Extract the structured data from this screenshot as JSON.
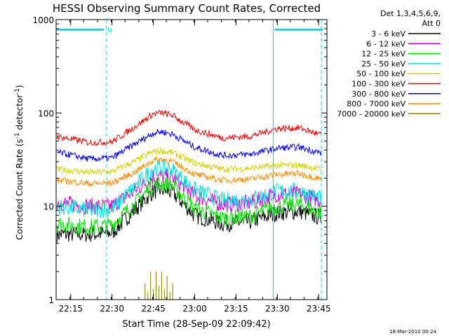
{
  "chart_data": {
    "type": "line",
    "title": "HESSI Observing Summary Count Rates, Corrected",
    "xlabel": "Start Time (28-Sep-09 22:09:42)",
    "ylabel_main": "Corrected Count Rate (s",
    "ylabel_sup1": "-1",
    "ylabel_mid": " detector",
    "ylabel_sup2": "-1",
    "ylabel_end": ")",
    "y_scale": "log",
    "ylim": [
      1,
      1000
    ],
    "xlim": [
      "22:09:42",
      "23:48:00"
    ],
    "x_ticks": [
      "22:15",
      "22:30",
      "22:45",
      "23:00",
      "23:15",
      "23:30",
      "23:45"
    ],
    "y_ticks": [
      "1",
      "10",
      "100",
      "1000"
    ],
    "legend_header": [
      "Det 1,3,4,5,6,9,",
      "Att 0"
    ],
    "legend_position": "right",
    "footer_date": "18-Mar-2010 00:24",
    "markers": {
      "n_label": "N",
      "bars": [
        {
          "from": "22:09:42",
          "to": "22:27:00",
          "value": 780
        },
        {
          "from": "23:29:00",
          "to": "23:46:30",
          "value": 780
        }
      ],
      "vertical_lines": [
        {
          "time": "22:09:42",
          "style": "solid"
        },
        {
          "time": "22:28:00",
          "style": "dashed"
        },
        {
          "time": "23:28:30",
          "style": "solid"
        },
        {
          "time": "23:46:00",
          "style": "dashed"
        }
      ]
    },
    "series": [
      {
        "name": "3 - 6 keV",
        "color": "#000000",
        "t": [
          "22:10",
          "22:22",
          "22:30",
          "22:38",
          "22:45",
          "22:48",
          "22:52",
          "23:00",
          "23:10",
          "23:20",
          "23:30",
          "23:38",
          "23:46"
        ],
        "values": [
          5,
          5,
          5.2,
          9,
          14.5,
          15,
          14,
          8,
          6.5,
          6.8,
          8.5,
          8.8,
          7.5
        ]
      },
      {
        "name": "6 - 12 keV",
        "color": "#d200d2",
        "t": [
          "22:10",
          "22:22",
          "22:30",
          "22:38",
          "22:45",
          "22:48",
          "22:52",
          "23:00",
          "23:10",
          "23:20",
          "23:30",
          "23:38",
          "23:46"
        ],
        "values": [
          11,
          10,
          10,
          14.5,
          20.5,
          21,
          20,
          13,
          10.5,
          10.8,
          13.5,
          13.5,
          11.5
        ]
      },
      {
        "name": "12 - 25 keV",
        "color": "#00dc00",
        "t": [
          "22:10",
          "22:22",
          "22:30",
          "22:38",
          "22:45",
          "22:48",
          "22:52",
          "23:00",
          "23:10",
          "23:20",
          "23:30",
          "23:38",
          "23:46"
        ],
        "values": [
          6.5,
          6,
          6.3,
          10.5,
          17,
          17.5,
          16.5,
          9.5,
          7.5,
          7.8,
          10,
          10.5,
          8.5
        ]
      },
      {
        "name": "25 - 50 keV",
        "color": "#00dcdc",
        "t": [
          "22:10",
          "22:22",
          "22:30",
          "22:38",
          "22:45",
          "22:48",
          "22:52",
          "23:00",
          "23:10",
          "23:20",
          "23:30",
          "23:38",
          "23:46"
        ],
        "values": [
          10,
          9,
          9.3,
          16,
          25.5,
          26,
          24.5,
          15,
          11.5,
          11.8,
          14.5,
          14.5,
          12
        ]
      },
      {
        "name": "50 - 100 keV",
        "color": "#d2d200",
        "t": [
          "22:10",
          "22:22",
          "22:30",
          "22:38",
          "22:45",
          "22:48",
          "22:52",
          "23:00",
          "23:10",
          "23:20",
          "23:30",
          "23:38",
          "23:46"
        ],
        "values": [
          25,
          23,
          23.5,
          30,
          38.5,
          39,
          37.5,
          29,
          25,
          25.5,
          27.5,
          27.5,
          25
        ]
      },
      {
        "name": "100 - 300 keV",
        "color": "#e60000",
        "t": [
          "22:10",
          "22:22",
          "22:30",
          "22:38",
          "22:45",
          "22:48",
          "22:52",
          "23:00",
          "23:10",
          "23:20",
          "23:30",
          "23:38",
          "23:46"
        ],
        "values": [
          56,
          48,
          49,
          70,
          98,
          100,
          94,
          66,
          54,
          56,
          68,
          69,
          58
        ]
      },
      {
        "name": "300 - 800 keV",
        "color": "#0000dc",
        "t": [
          "22:10",
          "22:22",
          "22:30",
          "22:38",
          "22:45",
          "22:48",
          "22:52",
          "23:00",
          "23:10",
          "23:20",
          "23:30",
          "23:38",
          "23:46"
        ],
        "values": [
          38,
          32,
          33,
          46,
          61,
          63,
          59,
          43,
          35,
          36,
          42,
          43,
          37
        ]
      },
      {
        "name": "800 - 7000 keV",
        "color": "#ff8c00",
        "t": [
          "22:10",
          "22:22",
          "22:30",
          "22:38",
          "22:45",
          "22:48",
          "22:52",
          "23:00",
          "23:10",
          "23:20",
          "23:30",
          "23:38",
          "23:46"
        ],
        "values": [
          19,
          17.5,
          17.8,
          23,
          31,
          32,
          30,
          22,
          19,
          19.5,
          22,
          22.5,
          19.5
        ]
      },
      {
        "name": "7000 - 20000 keV",
        "color": "#8c7800",
        "t": [
          "22:41",
          "22:42",
          "22:43",
          "22:44",
          "22:45",
          "22:46",
          "22:47",
          "22:48",
          "22:49",
          "22:50",
          "22:51",
          "22:52",
          "22:53"
        ],
        "values": [
          1,
          1.5,
          1.2,
          2,
          1.3,
          2,
          1.4,
          2,
          1.3,
          1.8,
          1.2,
          1.5,
          1
        ]
      }
    ]
  }
}
